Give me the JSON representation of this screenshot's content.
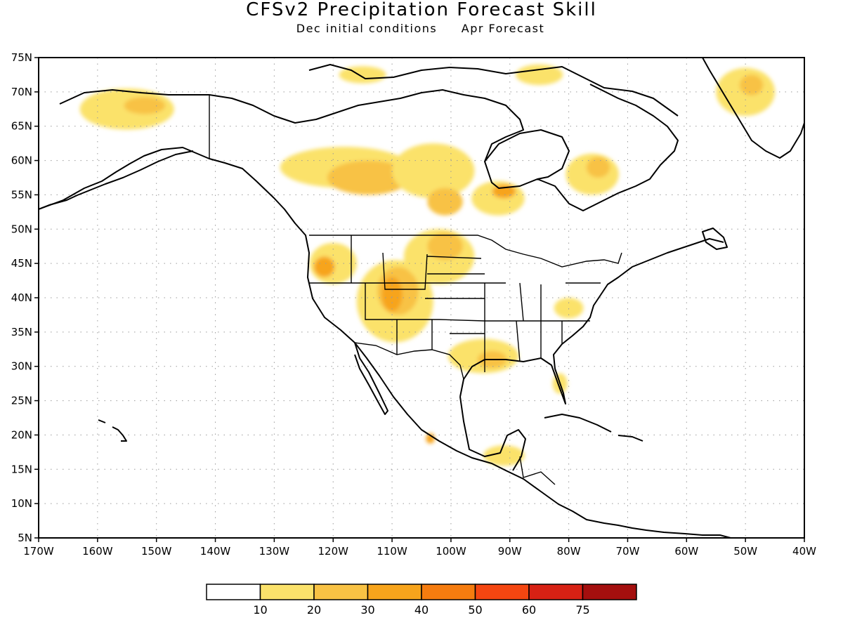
{
  "figure": {
    "title": "CFSv2 Precipitation Forecast Skill",
    "subtitle_left": "Dec initial conditions",
    "subtitle_right": "Apr Forecast"
  },
  "map": {
    "lon_range": [
      -170,
      -40
    ],
    "lat_range": [
      5,
      75
    ],
    "lon_ticks": [
      "170W",
      "160W",
      "150W",
      "140W",
      "130W",
      "120W",
      "110W",
      "100W",
      "90W",
      "80W",
      "70W",
      "60W",
      "50W",
      "40W"
    ],
    "lat_ticks": [
      "75N",
      "70N",
      "65N",
      "60N",
      "55N",
      "50N",
      "45N",
      "40N",
      "35N",
      "30N",
      "25N",
      "20N",
      "15N",
      "10N",
      "5N"
    ],
    "grid": true
  },
  "colorbar": {
    "labels": [
      "10",
      "20",
      "30",
      "40",
      "50",
      "60",
      "75"
    ],
    "colors": [
      "#ffffff",
      "#fbe26b",
      "#f8c244",
      "#f7a41c",
      "#f57c0f",
      "#f44611",
      "#d72114",
      "#a40f0e"
    ]
  },
  "skill_regions": [
    {
      "level": 1,
      "lon": -155,
      "lat": 67.5,
      "w": 16,
      "h": 6
    },
    {
      "level": 2,
      "lon": -152,
      "lat": 68,
      "w": 7,
      "h": 2.5
    },
    {
      "level": 1,
      "lon": -118,
      "lat": 59,
      "w": 22,
      "h": 6
    },
    {
      "level": 2,
      "lon": -114,
      "lat": 57.5,
      "w": 14,
      "h": 5
    },
    {
      "level": 1,
      "lon": -103,
      "lat": 58.5,
      "w": 14,
      "h": 8
    },
    {
      "level": 2,
      "lon": -101,
      "lat": 54,
      "w": 6,
      "h": 4
    },
    {
      "level": 1,
      "lon": -92,
      "lat": 54.5,
      "w": 9,
      "h": 5
    },
    {
      "level": 3,
      "lon": -91,
      "lat": 55.5,
      "w": 4,
      "h": 2
    },
    {
      "level": 1,
      "lon": -76,
      "lat": 58,
      "w": 9,
      "h": 6
    },
    {
      "level": 2,
      "lon": -75,
      "lat": 59,
      "w": 4,
      "h": 3
    },
    {
      "level": 1,
      "lon": -120,
      "lat": 45,
      "w": 8,
      "h": 6
    },
    {
      "level": 3,
      "lon": -121.5,
      "lat": 44.5,
      "w": 3.5,
      "h": 3
    },
    {
      "level": 1,
      "lon": -109.5,
      "lat": 39.5,
      "w": 13,
      "h": 12
    },
    {
      "level": 2,
      "lon": -109,
      "lat": 41,
      "w": 7,
      "h": 7
    },
    {
      "level": 3,
      "lon": -110,
      "lat": 40.5,
      "w": 3.5,
      "h": 5
    },
    {
      "level": 1,
      "lon": -102,
      "lat": 46,
      "w": 12,
      "h": 8
    },
    {
      "level": 2,
      "lon": -101,
      "lat": 47.5,
      "w": 6,
      "h": 4
    },
    {
      "level": 1,
      "lon": -94.5,
      "lat": 31.5,
      "w": 12,
      "h": 5
    },
    {
      "level": 2,
      "lon": -93,
      "lat": 31,
      "w": 5,
      "h": 2.5
    },
    {
      "level": 1,
      "lon": -50,
      "lat": 70,
      "w": 10,
      "h": 7
    },
    {
      "level": 2,
      "lon": -49,
      "lat": 71,
      "w": 4,
      "h": 3
    },
    {
      "level": 1,
      "lon": -91,
      "lat": 17,
      "w": 7,
      "h": 3
    },
    {
      "level": 3,
      "lon": -103.5,
      "lat": 19.5,
      "w": 1.5,
      "h": 1.5
    },
    {
      "level": 1,
      "lon": -81.5,
      "lat": 27.5,
      "w": 2.5,
      "h": 3
    },
    {
      "level": 1,
      "lon": -80,
      "lat": 38.5,
      "w": 5,
      "h": 3
    },
    {
      "level": 1,
      "lon": -115,
      "lat": 72.5,
      "w": 8,
      "h": 2.5
    },
    {
      "level": 1,
      "lon": -85,
      "lat": 72.5,
      "w": 8,
      "h": 3
    }
  ]
}
